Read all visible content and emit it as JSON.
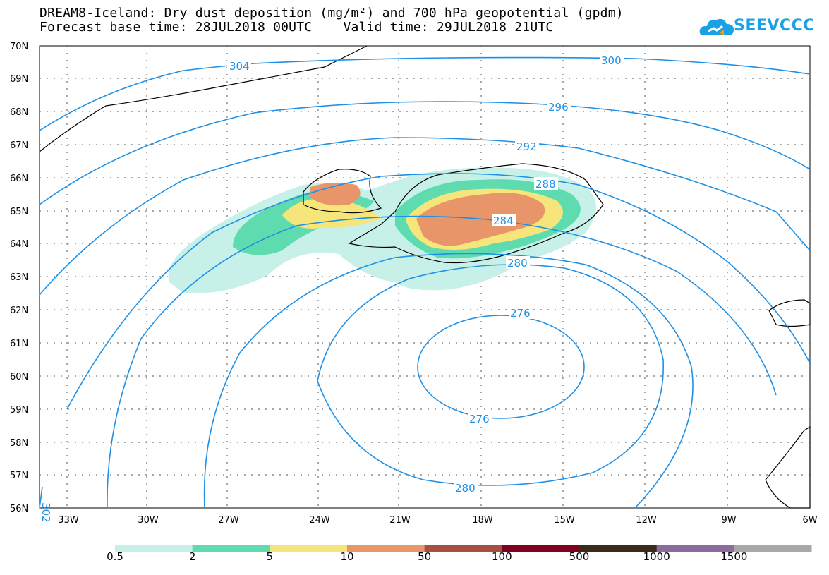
{
  "title_line1": "DREAM8-Iceland: Dry dust deposition (mg/m²) and 700 hPa geopotential (gpdm)",
  "title_line2": "Forecast base time: 28JUL2018 00UTC    Valid time: 29JUL2018 21UTC",
  "logo_text": "SEEVCCC",
  "lat_labels": [
    "70N",
    "69N",
    "68N",
    "67N",
    "66N",
    "65N",
    "64N",
    "63N",
    "62N",
    "61N",
    "60N",
    "59N",
    "58N",
    "57N",
    "56N"
  ],
  "lon_labels": [
    "33W",
    "30W",
    "27W",
    "24W",
    "21W",
    "18W",
    "15W",
    "12W",
    "9W",
    "6W"
  ],
  "contour_labels": [
    "304",
    "300",
    "296",
    "292",
    "288",
    "284",
    "280",
    "276",
    "276",
    "280",
    "302"
  ],
  "legend": {
    "labels": [
      "0.5",
      "2",
      "5",
      "10",
      "50",
      "100",
      "500",
      "1000",
      "1500"
    ],
    "colors": [
      "#c6f0e8",
      "#5edcb0",
      "#f5e57a",
      "#e8956a",
      "#a85040",
      "#800020",
      "#3a2a1a",
      "#8c6c9c",
      "#a8a8a8"
    ]
  },
  "colors": {
    "contour": "#1e90e6"
  }
}
